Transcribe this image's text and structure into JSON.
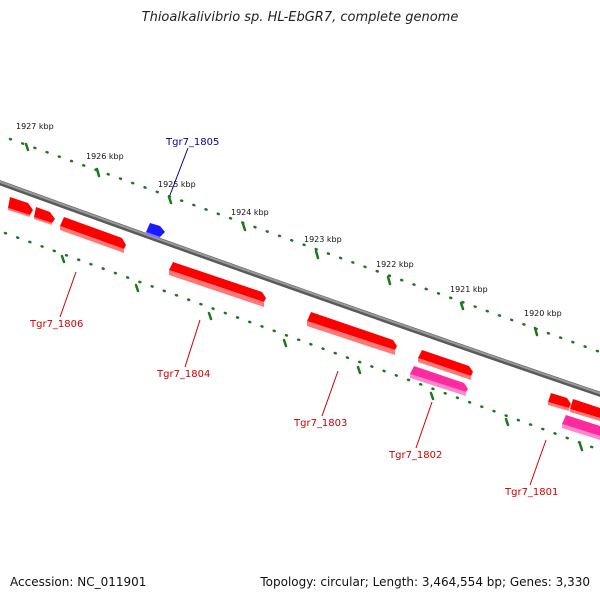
{
  "title": "Thioalkalivibrio sp. HL-EbGR7, complete genome",
  "footer": {
    "accession": "Accession: NC_011901",
    "topology": "Topology: circular; Length: 3,464,554 bp; Genes: 3,330"
  },
  "scale_labels": [
    "1927 kbp",
    "1926 kbp",
    "1925 kbp",
    "1924 kbp",
    "1923 kbp",
    "1922 kbp",
    "1921 kbp",
    "1920 kbp"
  ],
  "gene_labels": [
    "Tgr7_1805",
    "Tgr7_1806",
    "Tgr7_1804",
    "Tgr7_1803",
    "Tgr7_1802",
    "Tgr7_1801"
  ],
  "colors": {
    "backbone": "#808080",
    "scale_ticks": "#1a7a1a",
    "gene_red": "#ff0000",
    "gene_pink": "#ff2aa0",
    "gene_blue": "#1a1aff",
    "label_red": "#cc0000",
    "label_blue": "#000099"
  }
}
